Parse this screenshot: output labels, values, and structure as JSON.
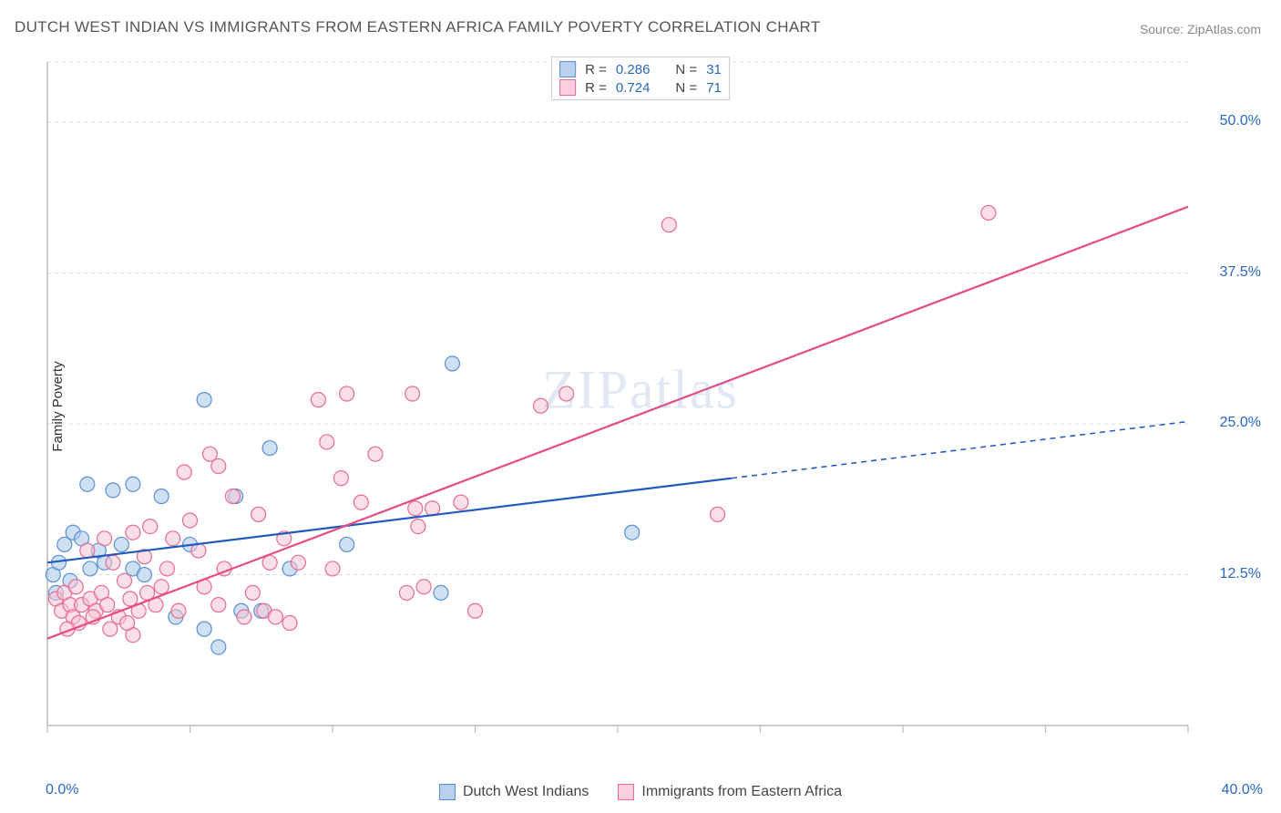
{
  "title": "DUTCH WEST INDIAN VS IMMIGRANTS FROM EASTERN AFRICA FAMILY POVERTY CORRELATION CHART",
  "source": "Source: ZipAtlas.com",
  "y_axis_label": "Family Poverty",
  "watermark": "ZIPatlas",
  "chart": {
    "type": "scatter",
    "background_color": "#ffffff",
    "grid_color": "#dddddd",
    "axis_line_color": "#bbbbbb",
    "tick_color": "#bbbbbb",
    "xlim": [
      0,
      40
    ],
    "ylim": [
      0,
      55
    ],
    "x_ticks_major": [
      0,
      40
    ],
    "x_ticks_minor": [
      5,
      10,
      15,
      20,
      25,
      30,
      35
    ],
    "x_tick_labels": {
      "0": "0.0%",
      "40": "40.0%"
    },
    "y_ticks": [
      12.5,
      25.0,
      37.5,
      50.0
    ],
    "y_tick_labels": {
      "12.5": "12.5%",
      "25.0": "25.0%",
      "37.5": "37.5%",
      "50.0": "50.0%"
    },
    "marker_radius": 8,
    "marker_opacity": 0.55,
    "marker_stroke_width": 1.2,
    "series": [
      {
        "id": "dutch",
        "name": "Dutch West Indians",
        "fill_color": "#a8c6ea",
        "stroke_color": "#5a8fd6",
        "swatch_fill": "#b9d1ef",
        "swatch_stroke": "#5a8fd6",
        "r_value": "0.286",
        "n_value": "31",
        "trend": {
          "x1": 0,
          "y1": 13.5,
          "x_solid_end": 24,
          "y_solid_end": 20.5,
          "x2": 40,
          "y2": 25.2,
          "color": "#2159bf",
          "width": 2.2,
          "dash": "6,5"
        },
        "points": [
          [
            0.2,
            12.5
          ],
          [
            0.3,
            11.0
          ],
          [
            0.4,
            13.5
          ],
          [
            0.6,
            15.0
          ],
          [
            0.8,
            12.0
          ],
          [
            0.9,
            16.0
          ],
          [
            1.2,
            15.5
          ],
          [
            1.5,
            13.0
          ],
          [
            1.8,
            14.5
          ],
          [
            1.4,
            20.0
          ],
          [
            2.0,
            13.5
          ],
          [
            2.3,
            19.5
          ],
          [
            2.6,
            15.0
          ],
          [
            3.0,
            13.0
          ],
          [
            3.0,
            20.0
          ],
          [
            3.4,
            12.5
          ],
          [
            4.0,
            19.0
          ],
          [
            4.5,
            9.0
          ],
          [
            5.0,
            15.0
          ],
          [
            5.5,
            8.0
          ],
          [
            5.5,
            27.0
          ],
          [
            6.6,
            19.0
          ],
          [
            6.8,
            9.5
          ],
          [
            7.5,
            9.5
          ],
          [
            7.8,
            23.0
          ],
          [
            8.5,
            13.0
          ],
          [
            10.5,
            15.0
          ],
          [
            13.8,
            11.0
          ],
          [
            14.2,
            30.0
          ],
          [
            20.5,
            16.0
          ],
          [
            6.0,
            6.5
          ]
        ]
      },
      {
        "id": "eafrica",
        "name": "Immigrants from Eastern Africa",
        "fill_color": "#f7c4d1",
        "stroke_color": "#e76b94",
        "swatch_fill": "#fbd0dc",
        "swatch_stroke": "#e76b94",
        "r_value": "0.724",
        "n_value": "71",
        "trend": {
          "x1": 0,
          "y1": 7.2,
          "x_solid_end": 40,
          "y_solid_end": 43.0,
          "x2": 40,
          "y2": 43.0,
          "color": "#e64b85",
          "width": 2.2,
          "dash": null
        },
        "points": [
          [
            0.3,
            10.5
          ],
          [
            0.5,
            9.5
          ],
          [
            0.6,
            11.0
          ],
          [
            0.8,
            10.0
          ],
          [
            0.9,
            9.0
          ],
          [
            1.0,
            11.5
          ],
          [
            1.2,
            10.0
          ],
          [
            1.4,
            14.5
          ],
          [
            1.5,
            10.5
          ],
          [
            1.7,
            9.5
          ],
          [
            1.9,
            11.0
          ],
          [
            2.0,
            15.5
          ],
          [
            2.1,
            10.0
          ],
          [
            2.3,
            13.5
          ],
          [
            2.5,
            9.0
          ],
          [
            2.7,
            12.0
          ],
          [
            2.9,
            10.5
          ],
          [
            3.0,
            16.0
          ],
          [
            3.2,
            9.5
          ],
          [
            3.4,
            14.0
          ],
          [
            3.6,
            16.5
          ],
          [
            3.8,
            10.0
          ],
          [
            4.0,
            11.5
          ],
          [
            4.2,
            13.0
          ],
          [
            4.4,
            15.5
          ],
          [
            4.6,
            9.5
          ],
          [
            5.0,
            17.0
          ],
          [
            5.3,
            14.5
          ],
          [
            5.7,
            22.5
          ],
          [
            6.0,
            10.0
          ],
          [
            6.2,
            13.0
          ],
          [
            6.5,
            19.0
          ],
          [
            6.9,
            9.0
          ],
          [
            7.2,
            11.0
          ],
          [
            7.4,
            17.5
          ],
          [
            7.6,
            9.5
          ],
          [
            7.8,
            13.5
          ],
          [
            8.0,
            9.0
          ],
          [
            8.3,
            15.5
          ],
          [
            8.5,
            8.5
          ],
          [
            9.5,
            27.0
          ],
          [
            9.8,
            23.5
          ],
          [
            10.0,
            13.0
          ],
          [
            10.3,
            20.5
          ],
          [
            10.5,
            27.5
          ],
          [
            11.0,
            18.5
          ],
          [
            11.5,
            22.5
          ],
          [
            12.6,
            11.0
          ],
          [
            12.8,
            27.5
          ],
          [
            12.9,
            18.0
          ],
          [
            13.0,
            16.5
          ],
          [
            13.2,
            11.5
          ],
          [
            13.5,
            18.0
          ],
          [
            14.5,
            18.5
          ],
          [
            15.0,
            9.5
          ],
          [
            17.3,
            26.5
          ],
          [
            18.2,
            27.5
          ],
          [
            21.8,
            41.5
          ],
          [
            23.5,
            17.5
          ],
          [
            33.0,
            42.5
          ],
          [
            4.8,
            21.0
          ],
          [
            3.0,
            7.5
          ],
          [
            2.2,
            8.0
          ],
          [
            1.1,
            8.5
          ],
          [
            0.7,
            8.0
          ],
          [
            1.6,
            9.0
          ],
          [
            2.8,
            8.5
          ],
          [
            3.5,
            11.0
          ],
          [
            5.5,
            11.5
          ],
          [
            6.0,
            21.5
          ],
          [
            8.8,
            13.5
          ]
        ]
      }
    ]
  },
  "legend_top_prefix_r": "R =",
  "legend_top_prefix_n": "N ="
}
